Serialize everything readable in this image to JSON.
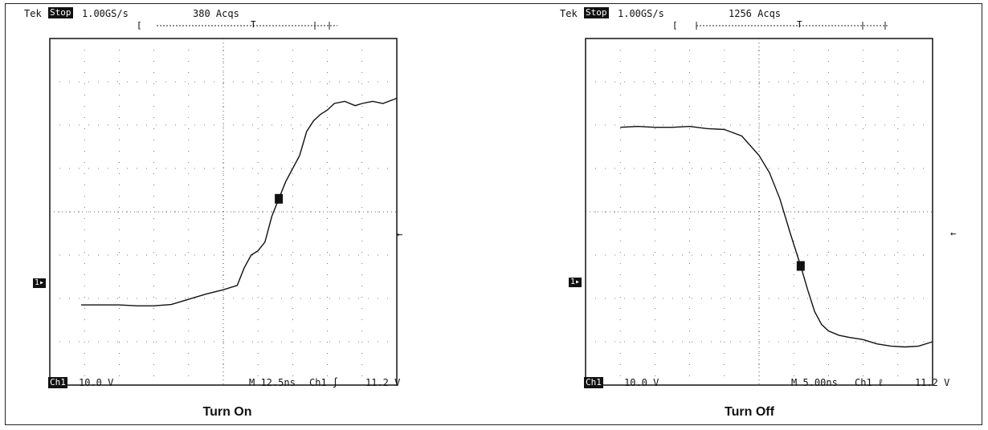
{
  "chart_data": [
    {
      "type": "line",
      "title": "Turn On",
      "header": {
        "brand": "Tek",
        "state": "Stop",
        "rate": "1.00GS/s",
        "acqs": "380 Acqs"
      },
      "footer": {
        "channel": "Ch1",
        "volts_per_div": "10.0 V",
        "timebase": "M 12.5ns",
        "trigger": "Ch1 ∫",
        "trigger_level": "11.2 V"
      },
      "xlim": [
        0,
        10
      ],
      "ylim": [
        0,
        8
      ],
      "grid": true,
      "x": [
        0.9,
        1.5,
        2.0,
        2.5,
        3.0,
        3.5,
        4.0,
        4.5,
        5.0,
        5.4,
        5.6,
        5.8,
        6.0,
        6.2,
        6.4,
        6.6,
        6.8,
        7.0,
        7.2,
        7.4,
        7.6,
        7.8,
        8.0,
        8.2,
        8.5,
        8.8,
        9.0,
        9.3,
        9.6,
        10.0
      ],
      "y": [
        1.85,
        1.85,
        1.85,
        1.83,
        1.83,
        1.86,
        1.98,
        2.1,
        2.2,
        2.3,
        2.7,
        3.0,
        3.1,
        3.3,
        3.9,
        4.3,
        4.7,
        5.0,
        5.3,
        5.85,
        6.1,
        6.25,
        6.35,
        6.5,
        6.55,
        6.45,
        6.5,
        6.55,
        6.5,
        6.62
      ]
    },
    {
      "type": "line",
      "title": "Turn Off",
      "header": {
        "brand": "Tek",
        "state": "Stop",
        "rate": "1.00GS/s",
        "acqs": "1256 Acqs"
      },
      "footer": {
        "channel": "Ch1",
        "volts_per_div": "10.0 V",
        "timebase": "M 5.00ns",
        "trigger": "Ch1 ℓ",
        "trigger_level": "11.2 V"
      },
      "xlim": [
        0,
        10
      ],
      "ylim": [
        0,
        8
      ],
      "grid": true,
      "x": [
        1.0,
        1.5,
        2.0,
        2.5,
        3.0,
        3.5,
        4.0,
        4.5,
        5.0,
        5.3,
        5.6,
        5.9,
        6.2,
        6.4,
        6.6,
        6.8,
        7.0,
        7.3,
        7.6,
        8.0,
        8.4,
        8.8,
        9.2,
        9.6,
        10.0
      ],
      "y": [
        5.95,
        5.97,
        5.95,
        5.95,
        5.97,
        5.92,
        5.9,
        5.75,
        5.3,
        4.9,
        4.3,
        3.5,
        2.75,
        2.2,
        1.7,
        1.4,
        1.25,
        1.15,
        1.1,
        1.05,
        0.95,
        0.9,
        0.88,
        0.9,
        1.0
      ]
    }
  ]
}
